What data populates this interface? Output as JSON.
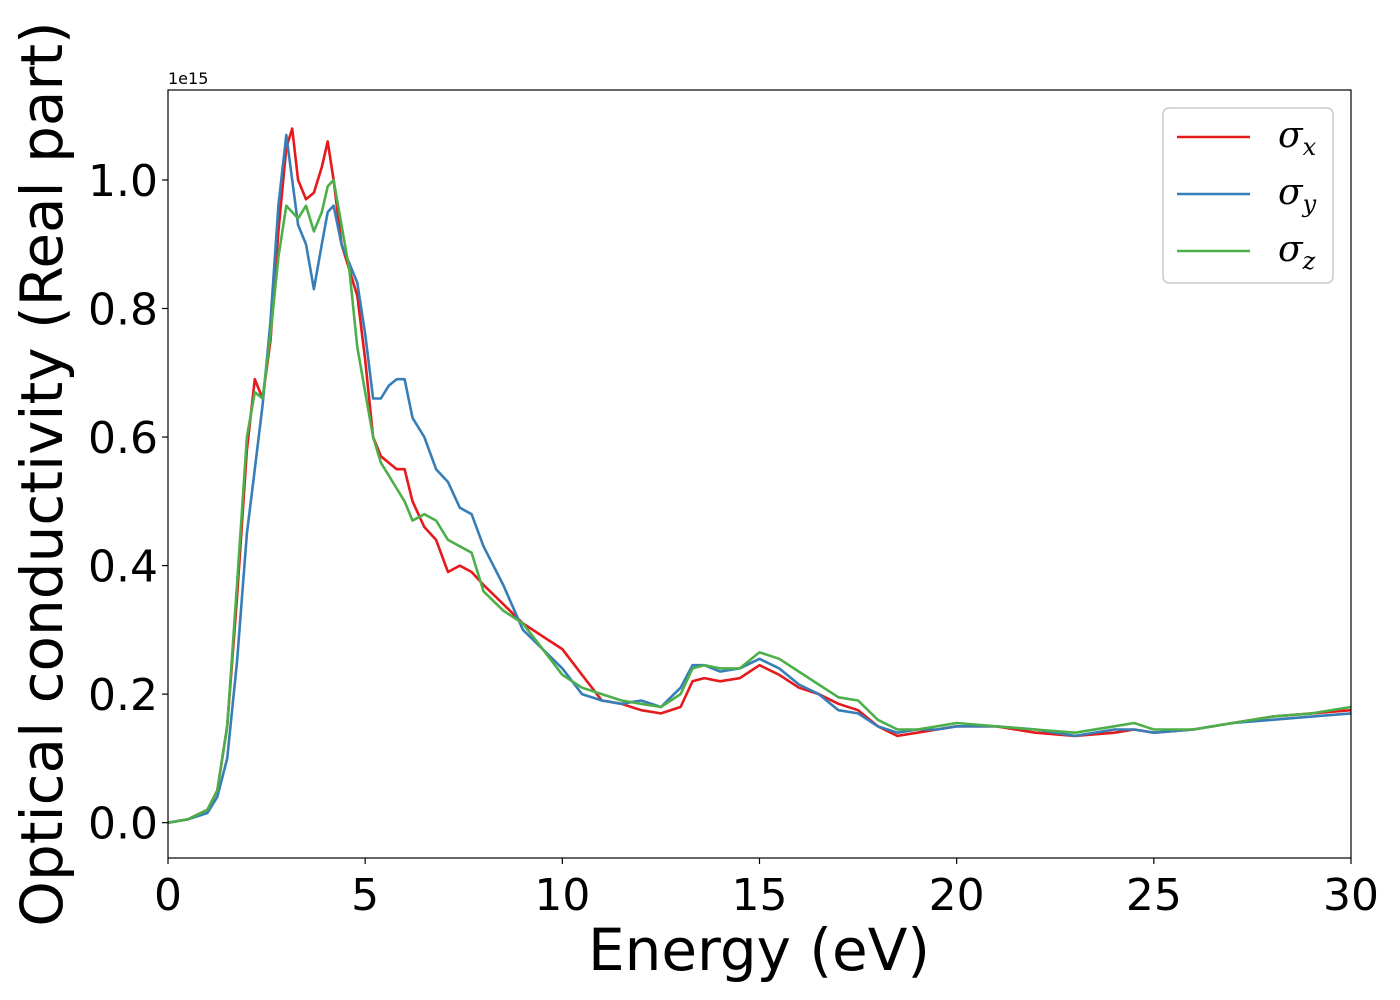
{
  "chart_data": {
    "type": "line",
    "title": "",
    "xlabel": "Energy (eV)",
    "ylabel": "Optical conductivity (Real part)",
    "y_offset_label": "1e15",
    "xlim": [
      0,
      30
    ],
    "ylim": [
      -0.055,
      1.14
    ],
    "x_ticks": [
      0,
      5,
      10,
      15,
      20,
      25,
      30
    ],
    "x_tick_labels": [
      "0",
      "5",
      "10",
      "15",
      "20",
      "25",
      "30"
    ],
    "y_ticks": [
      0.0,
      0.2,
      0.4,
      0.6,
      0.8,
      1.0
    ],
    "y_tick_labels": [
      "0.0",
      "0.2",
      "0.4",
      "0.6",
      "0.8",
      "1.0"
    ],
    "grid": false,
    "legend_position": "top-right",
    "x": [
      0,
      0.5,
      1.0,
      1.25,
      1.5,
      1.75,
      2.0,
      2.2,
      2.4,
      2.6,
      2.8,
      3.0,
      3.15,
      3.3,
      3.5,
      3.7,
      3.9,
      4.05,
      4.2,
      4.4,
      4.6,
      4.8,
      5.0,
      5.2,
      5.4,
      5.6,
      5.8,
      6.0,
      6.2,
      6.5,
      6.8,
      7.1,
      7.4,
      7.7,
      8.0,
      8.5,
      9.0,
      9.5,
      10.0,
      10.5,
      11.0,
      11.5,
      12.0,
      12.5,
      13.0,
      13.3,
      13.6,
      14.0,
      14.5,
      15.0,
      15.5,
      16.0,
      16.5,
      17.0,
      17.5,
      18.0,
      18.5,
      19.0,
      19.5,
      20.0,
      21.0,
      22.0,
      23.0,
      24.0,
      24.5,
      25.0,
      26.0,
      27.0,
      28.0,
      29.0,
      30.0
    ],
    "series": [
      {
        "name": "σx",
        "color": "#e41a1c",
        "values": [
          0.0,
          0.005,
          0.02,
          0.05,
          0.15,
          0.35,
          0.58,
          0.69,
          0.66,
          0.75,
          0.92,
          1.05,
          1.08,
          1.0,
          0.97,
          0.98,
          1.02,
          1.06,
          1.0,
          0.9,
          0.86,
          0.82,
          0.72,
          0.6,
          0.57,
          0.56,
          0.55,
          0.55,
          0.5,
          0.46,
          0.44,
          0.39,
          0.4,
          0.39,
          0.37,
          0.34,
          0.31,
          0.29,
          0.27,
          0.23,
          0.19,
          0.185,
          0.175,
          0.17,
          0.18,
          0.22,
          0.225,
          0.22,
          0.225,
          0.245,
          0.23,
          0.21,
          0.2,
          0.185,
          0.175,
          0.15,
          0.135,
          0.14,
          0.145,
          0.15,
          0.15,
          0.14,
          0.135,
          0.14,
          0.145,
          0.14,
          0.145,
          0.155,
          0.165,
          0.17,
          0.175
        ]
      },
      {
        "name": "σy",
        "color": "#377eb8",
        "values": [
          0.0,
          0.005,
          0.015,
          0.04,
          0.1,
          0.25,
          0.45,
          0.55,
          0.65,
          0.78,
          0.96,
          1.07,
          1.0,
          0.93,
          0.9,
          0.83,
          0.9,
          0.95,
          0.96,
          0.9,
          0.87,
          0.84,
          0.76,
          0.66,
          0.66,
          0.68,
          0.69,
          0.69,
          0.63,
          0.6,
          0.55,
          0.53,
          0.49,
          0.48,
          0.43,
          0.37,
          0.3,
          0.27,
          0.24,
          0.2,
          0.19,
          0.185,
          0.19,
          0.18,
          0.21,
          0.245,
          0.245,
          0.235,
          0.24,
          0.255,
          0.24,
          0.215,
          0.2,
          0.175,
          0.17,
          0.15,
          0.14,
          0.145,
          0.145,
          0.15,
          0.15,
          0.145,
          0.135,
          0.145,
          0.145,
          0.14,
          0.145,
          0.155,
          0.16,
          0.165,
          0.17
        ]
      },
      {
        "name": "σz",
        "color": "#4daf4a",
        "values": [
          0.0,
          0.005,
          0.02,
          0.05,
          0.15,
          0.37,
          0.6,
          0.67,
          0.66,
          0.76,
          0.88,
          0.96,
          0.95,
          0.94,
          0.96,
          0.92,
          0.95,
          0.99,
          1.0,
          0.93,
          0.86,
          0.74,
          0.67,
          0.6,
          0.56,
          0.54,
          0.52,
          0.5,
          0.47,
          0.48,
          0.47,
          0.44,
          0.43,
          0.42,
          0.36,
          0.33,
          0.31,
          0.27,
          0.23,
          0.21,
          0.2,
          0.19,
          0.185,
          0.18,
          0.2,
          0.24,
          0.245,
          0.24,
          0.24,
          0.265,
          0.255,
          0.235,
          0.215,
          0.195,
          0.19,
          0.16,
          0.145,
          0.145,
          0.15,
          0.155,
          0.15,
          0.145,
          0.14,
          0.15,
          0.155,
          0.145,
          0.145,
          0.155,
          0.165,
          0.17,
          0.18
        ]
      }
    ]
  }
}
